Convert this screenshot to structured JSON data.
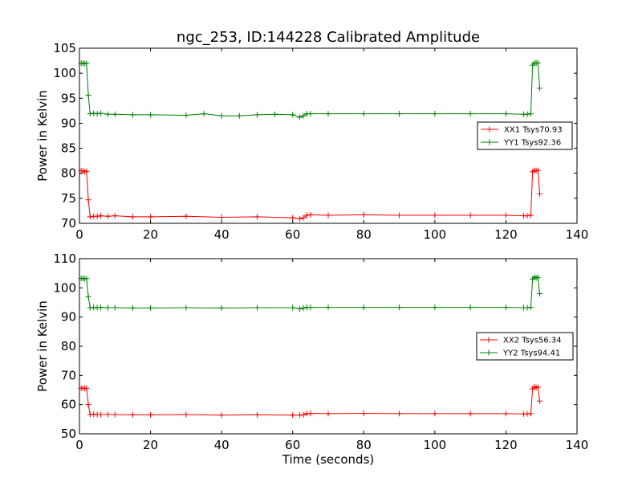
{
  "title": "ngc_253, ID:144228 Calibrated Amplitude",
  "chart_data": [
    {
      "type": "line",
      "panel": "top",
      "title": "ngc_253, ID:144228 Calibrated Amplitude",
      "xlabel": "",
      "ylabel": "Power in Kelvin",
      "xlim": [
        0,
        140
      ],
      "ylim": [
        70,
        105
      ],
      "xticks": [
        0,
        20,
        40,
        60,
        80,
        100,
        120,
        140
      ],
      "yticks": [
        70,
        75,
        80,
        85,
        90,
        95,
        100,
        105
      ],
      "xtick_labels": [
        "0",
        "20",
        "40",
        "60",
        "80",
        "100",
        "120",
        "140"
      ],
      "ytick_labels": [
        "70",
        "75",
        "80",
        "85",
        "90",
        "95",
        "100",
        "105"
      ],
      "legend_position": "center-right",
      "series": [
        {
          "name": "XX1 Tsys70.93",
          "color": "#ff0000",
          "marker": "+",
          "x": [
            0.5,
            1.0,
            1.5,
            2.0,
            2.5,
            3.0,
            4,
            5,
            6,
            8,
            10,
            15,
            20,
            30,
            40,
            50,
            60,
            62,
            63,
            64,
            65,
            70,
            80,
            90,
            100,
            110,
            120,
            125,
            126,
            127,
            127.5,
            128.0,
            128.5,
            129.0,
            129.5
          ],
          "values": [
            80.5,
            80.5,
            80.3,
            80.4,
            74.7,
            71.3,
            71.4,
            71.4,
            71.5,
            71.4,
            71.5,
            71.3,
            71.3,
            71.4,
            71.2,
            71.3,
            71.1,
            70.9,
            71.1,
            71.6,
            71.7,
            71.6,
            71.7,
            71.6,
            71.6,
            71.6,
            71.6,
            71.5,
            71.5,
            71.6,
            80.3,
            80.6,
            80.5,
            80.6,
            75.9
          ]
        },
        {
          "name": "YY1 Tsys92.36",
          "color": "#008000",
          "marker": "+",
          "x": [
            0.5,
            1.0,
            1.5,
            2.0,
            2.5,
            3.0,
            4,
            5,
            6,
            8,
            10,
            15,
            20,
            30,
            35,
            40,
            45,
            50,
            55,
            60,
            62,
            63,
            64,
            65,
            70,
            80,
            90,
            100,
            110,
            120,
            125,
            126,
            127,
            127.5,
            128.0,
            128.5,
            129.0,
            129.5
          ],
          "values": [
            102.0,
            102.0,
            101.9,
            102.0,
            95.6,
            91.9,
            92.0,
            91.9,
            92.0,
            91.8,
            91.8,
            91.7,
            91.7,
            91.6,
            91.9,
            91.5,
            91.5,
            91.7,
            91.8,
            91.7,
            91.2,
            91.5,
            91.9,
            91.9,
            91.9,
            91.9,
            91.9,
            91.9,
            91.9,
            91.9,
            91.8,
            91.8,
            91.9,
            101.6,
            102.1,
            102.0,
            102.1,
            97.0
          ]
        }
      ]
    },
    {
      "type": "line",
      "panel": "bottom",
      "title": "",
      "xlabel": "Time (seconds)",
      "ylabel": "Power in Kelvin",
      "xlim": [
        0,
        140
      ],
      "ylim": [
        50,
        110
      ],
      "xticks": [
        0,
        20,
        40,
        60,
        80,
        100,
        120,
        140
      ],
      "yticks": [
        50,
        60,
        70,
        80,
        90,
        100,
        110
      ],
      "xtick_labels": [
        "0",
        "20",
        "40",
        "60",
        "80",
        "100",
        "120",
        "140"
      ],
      "ytick_labels": [
        "50",
        "60",
        "70",
        "80",
        "90",
        "100",
        "110"
      ],
      "legend_position": "center-right",
      "series": [
        {
          "name": "XX2 Tsys56.34",
          "color": "#ff0000",
          "marker": "+",
          "x": [
            0.5,
            1.0,
            1.5,
            2.0,
            2.5,
            3.0,
            4,
            5,
            6,
            8,
            10,
            15,
            20,
            30,
            40,
            50,
            60,
            62,
            63,
            64,
            65,
            70,
            80,
            90,
            100,
            110,
            120,
            125,
            126,
            127,
            127.5,
            128.0,
            128.5,
            129.0,
            129.5
          ],
          "values": [
            65.6,
            65.7,
            65.5,
            65.6,
            60.0,
            56.6,
            56.7,
            56.6,
            56.6,
            56.6,
            56.6,
            56.5,
            56.5,
            56.6,
            56.4,
            56.5,
            56.4,
            56.4,
            56.5,
            56.9,
            57.0,
            56.9,
            57.0,
            56.9,
            56.9,
            56.9,
            56.9,
            56.8,
            56.8,
            56.9,
            65.4,
            66.1,
            65.8,
            66.0,
            61.2
          ]
        },
        {
          "name": "YY2 Tsys94.41",
          "color": "#008000",
          "marker": "+",
          "x": [
            0.5,
            1.0,
            1.5,
            2.0,
            2.5,
            3.0,
            4,
            5,
            6,
            8,
            10,
            15,
            20,
            30,
            40,
            50,
            60,
            62,
            63,
            64,
            65,
            70,
            80,
            90,
            100,
            110,
            120,
            125,
            126,
            127,
            127.5,
            128.0,
            128.5,
            129.0,
            129.5
          ],
          "values": [
            103.2,
            103.3,
            103.1,
            103.2,
            97.0,
            93.2,
            93.3,
            93.2,
            93.3,
            93.2,
            93.2,
            93.1,
            93.1,
            93.2,
            93.1,
            93.2,
            93.2,
            92.8,
            93.1,
            93.3,
            93.3,
            93.3,
            93.3,
            93.3,
            93.3,
            93.3,
            93.3,
            93.2,
            93.2,
            93.3,
            103.0,
            103.7,
            103.4,
            103.6,
            98.0
          ]
        }
      ]
    }
  ]
}
